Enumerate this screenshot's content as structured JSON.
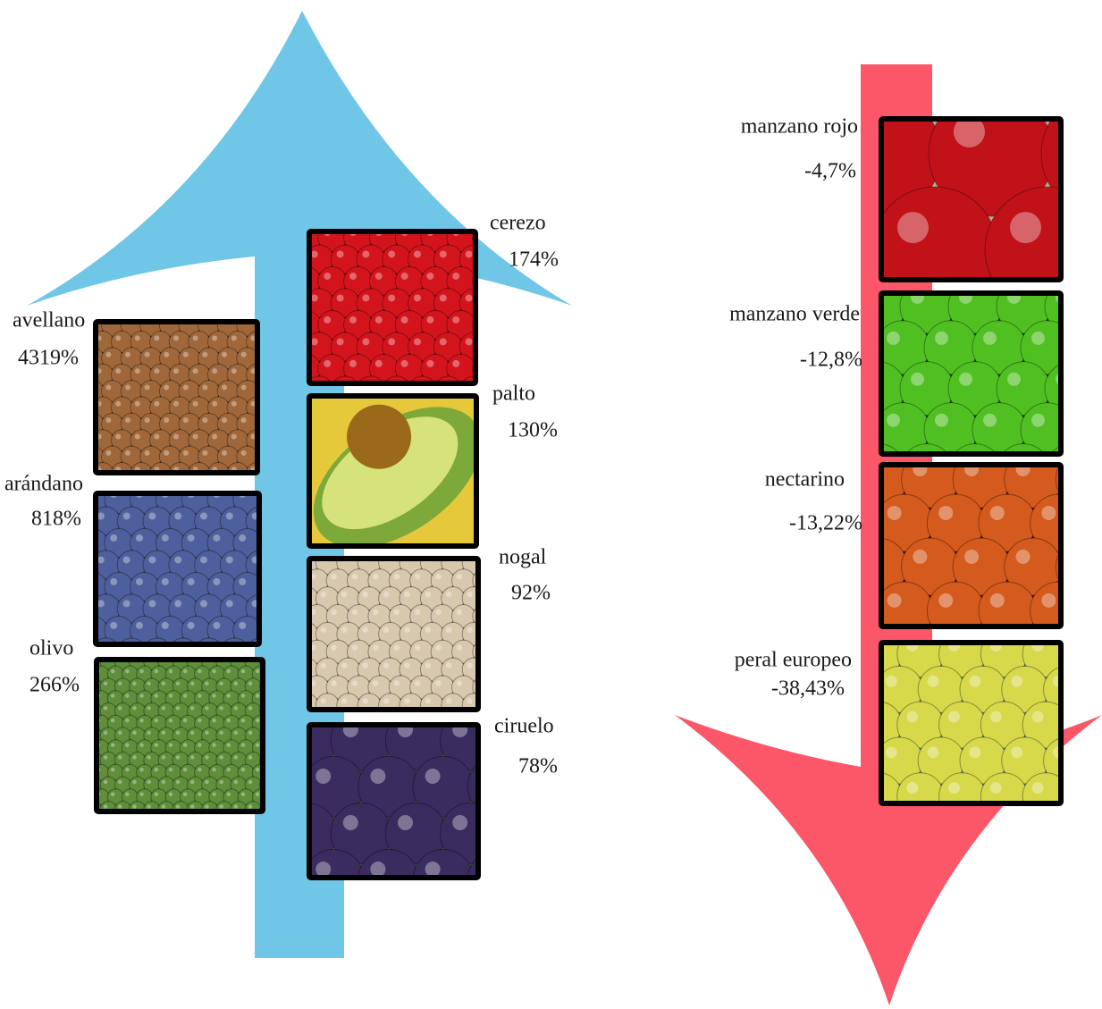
{
  "increases": [
    {
      "name": "avellano",
      "change": "4319%"
    },
    {
      "name": "arándano",
      "change": "818%"
    },
    {
      "name": "olivo",
      "change": "266%"
    },
    {
      "name": "cerezo",
      "change": "174%"
    },
    {
      "name": "palto",
      "change": "130%"
    },
    {
      "name": "nogal",
      "change": "92%"
    },
    {
      "name": "ciruelo",
      "change": "78%"
    }
  ],
  "decreases": [
    {
      "name": "manzano rojo",
      "change": "-4,7%"
    },
    {
      "name": "manzano verde",
      "change": "-12,8%"
    },
    {
      "name": "nectarino",
      "change": "-13,22%"
    },
    {
      "name": "peral europeo",
      "change": "-38,43%"
    }
  ]
}
